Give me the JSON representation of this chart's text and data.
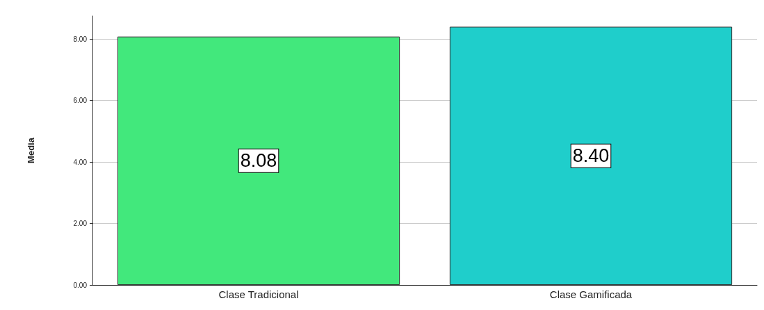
{
  "chart_data": {
    "type": "bar",
    "ylabel": "Media",
    "categories": [
      "Clase Tradicional",
      "Clase Gamificada"
    ],
    "values": [
      8.08,
      8.4
    ],
    "value_labels": [
      "8.08",
      "8.40"
    ],
    "colors": [
      "#42e87c",
      "#1fcecb"
    ],
    "ylim": [
      0,
      8.75
    ],
    "yticks": [
      {
        "value": 0,
        "label": "0.00"
      },
      {
        "value": 2,
        "label": "2.00"
      },
      {
        "value": 4,
        "label": "4.00"
      },
      {
        "value": 6,
        "label": "6.00"
      },
      {
        "value": 8,
        "label": "8.00"
      }
    ],
    "grid": "y"
  }
}
